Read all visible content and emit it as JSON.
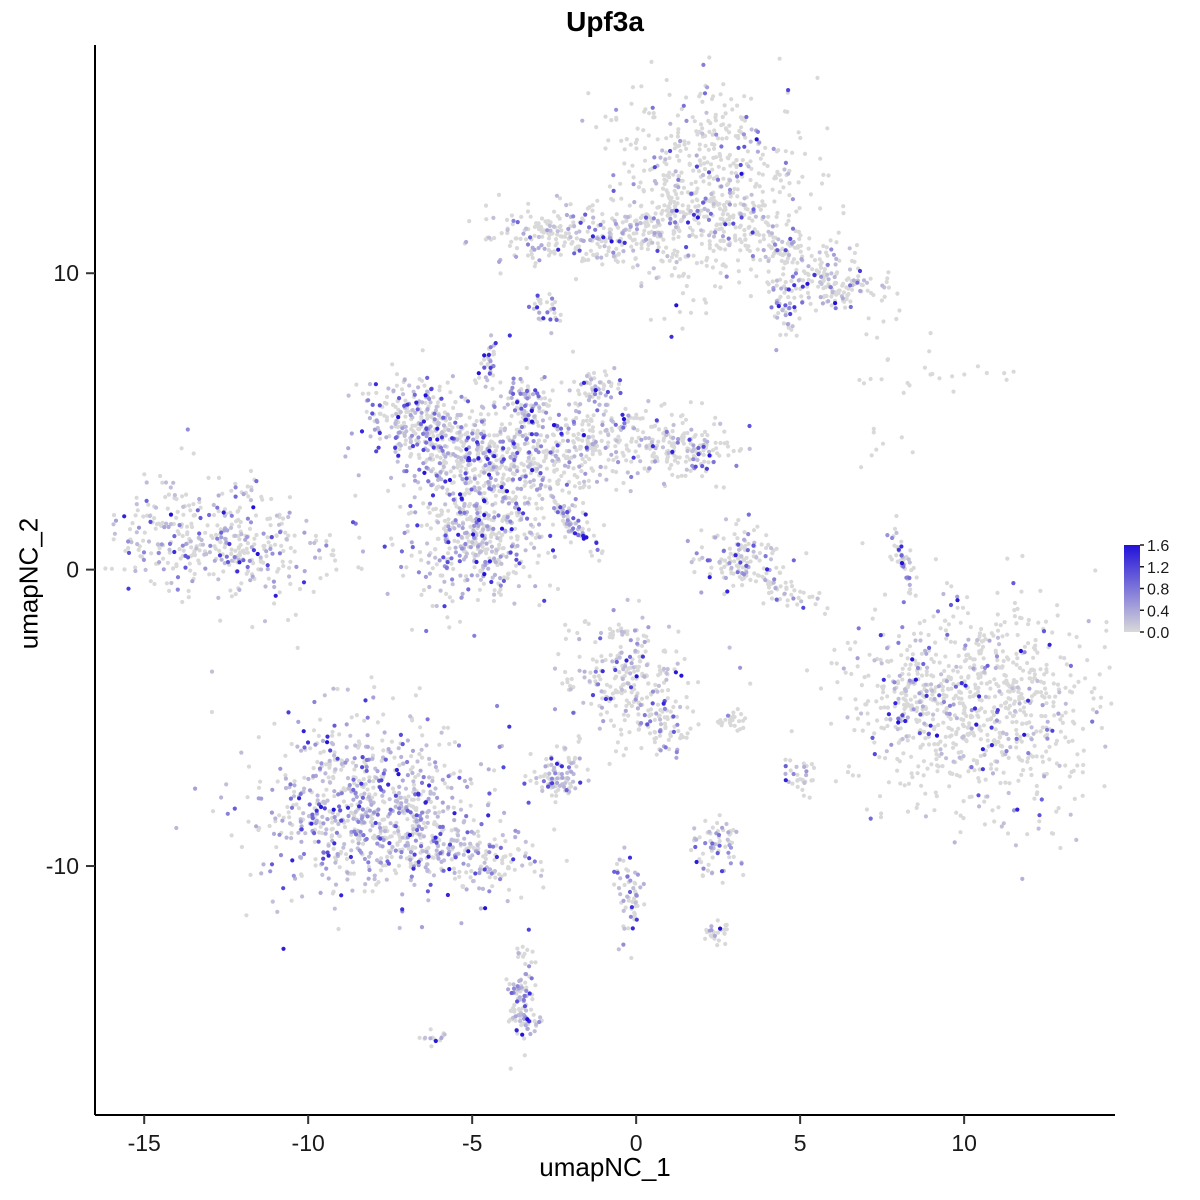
{
  "chart_data": {
    "type": "scatter",
    "title": "Upf3a",
    "xlabel": "umapNC_1",
    "ylabel": "umapNC_2",
    "xlim": [
      -16.5,
      14.6
    ],
    "ylim": [
      -18.4,
      17.7
    ],
    "x_ticks": [
      -15,
      -10,
      -5,
      0,
      5,
      10
    ],
    "y_ticks": [
      10,
      0,
      -10
    ],
    "grid": false,
    "background": "#FFFFFF",
    "legend": {
      "position": "right",
      "tick_labels": [
        "1.6",
        "1.2",
        "0.8",
        "0.4",
        "0.0"
      ],
      "min": 0.0,
      "max": 1.6,
      "low_color": "#D9D9D9",
      "high_color": "#2212D9"
    },
    "point_style": {
      "radius": 2.1
    },
    "seed": 7,
    "clusters": [
      {
        "cx": 2.0,
        "cy": 13.4,
        "sx": 1.4,
        "sy": 1.5,
        "rot": 0,
        "n": 500,
        "frac": 0.22
      },
      {
        "cx": 4.6,
        "cy": 10.8,
        "sx": 1.7,
        "sy": 0.55,
        "rot": -30,
        "n": 260,
        "frac": 0.28
      },
      {
        "cx": 5.8,
        "cy": 9.6,
        "sx": 0.6,
        "sy": 0.4,
        "rot": 0,
        "n": 70,
        "frac": 0.35
      },
      {
        "cx": 4.5,
        "cy": 8.8,
        "sx": 0.25,
        "sy": 0.5,
        "rot": 0,
        "n": 40,
        "frac": 0.5
      },
      {
        "cx": 1.5,
        "cy": 10.3,
        "sx": 0.9,
        "sy": 1.0,
        "rot": 0,
        "n": 60,
        "frac": 0.2
      },
      {
        "cx": -2.1,
        "cy": 11.3,
        "sx": 1.4,
        "sy": 0.5,
        "rot": -5,
        "n": 230,
        "frac": 0.3
      },
      {
        "cx": 0.3,
        "cy": 11.6,
        "sx": 1.2,
        "sy": 0.45,
        "rot": 10,
        "n": 90,
        "frac": 0.25
      },
      {
        "cx": -2.7,
        "cy": 8.6,
        "sx": 0.22,
        "sy": 0.38,
        "rot": 0,
        "n": 30,
        "frac": 0.55
      },
      {
        "cx": -4.5,
        "cy": 7.0,
        "sx": 0.2,
        "sy": 0.4,
        "rot": 0,
        "n": 28,
        "frac": 0.5
      },
      {
        "cx": -4.4,
        "cy": 3.2,
        "sx": 1.3,
        "sy": 1.5,
        "rot": 20,
        "n": 650,
        "frac": 0.45
      },
      {
        "cx": -7.0,
        "cy": 5.2,
        "sx": 0.75,
        "sy": 0.75,
        "rot": 0,
        "n": 170,
        "frac": 0.5
      },
      {
        "cx": -5.8,
        "cy": 4.3,
        "sx": 0.8,
        "sy": 0.5,
        "rot": -30,
        "n": 120,
        "frac": 0.4
      },
      {
        "cx": -1.2,
        "cy": 4.3,
        "sx": 1.5,
        "sy": 0.65,
        "rot": 8,
        "n": 280,
        "frac": 0.35
      },
      {
        "cx": 1.6,
        "cy": 4.0,
        "sx": 0.8,
        "sy": 0.55,
        "rot": 0,
        "n": 150,
        "frac": 0.3
      },
      {
        "cx": -1.9,
        "cy": 1.5,
        "sx": 0.7,
        "sy": 0.13,
        "rot": -50,
        "n": 70,
        "frac": 0.5
      },
      {
        "cx": -4.9,
        "cy": 0.6,
        "sx": 1.0,
        "sy": 0.9,
        "rot": 10,
        "n": 260,
        "frac": 0.45
      },
      {
        "cx": -3.4,
        "cy": 5.5,
        "sx": 0.3,
        "sy": 0.7,
        "rot": 0,
        "n": 80,
        "frac": 0.45
      },
      {
        "cx": -1.2,
        "cy": 6.1,
        "sx": 0.35,
        "sy": 0.4,
        "rot": 0,
        "n": 60,
        "frac": 0.4
      },
      {
        "cx": -12.7,
        "cy": 0.9,
        "sx": 1.7,
        "sy": 0.95,
        "rot": -8,
        "n": 430,
        "frac": 0.33
      },
      {
        "cx": 3.2,
        "cy": 0.4,
        "sx": 0.65,
        "sy": 0.55,
        "rot": 0,
        "n": 130,
        "frac": 0.3
      },
      {
        "cx": 4.4,
        "cy": -0.6,
        "sx": 0.6,
        "sy": 0.25,
        "rot": -25,
        "n": 50,
        "frac": 0.2
      },
      {
        "cx": 8.1,
        "cy": 0.4,
        "sx": 0.14,
        "sy": 0.55,
        "rot": 15,
        "n": 45,
        "frac": 0.4
      },
      {
        "cx": 10.4,
        "cy": -4.6,
        "sx": 2.0,
        "sy": 1.8,
        "rot": -15,
        "n": 850,
        "frac": 0.16
      },
      {
        "cx": 8.3,
        "cy": -4.0,
        "sx": 0.6,
        "sy": 0.8,
        "rot": 0,
        "n": 90,
        "frac": 0.3
      },
      {
        "cx": 9.0,
        "cy": 6.5,
        "sx": 1.4,
        "sy": 0.35,
        "rot": 0,
        "n": 22,
        "frac": 0.05
      },
      {
        "cx": 7.8,
        "cy": 4.2,
        "sx": 0.5,
        "sy": 0.4,
        "rot": 0,
        "n": 8,
        "frac": 0.1
      },
      {
        "cx": -0.3,
        "cy": -3.6,
        "sx": 0.85,
        "sy": 1.05,
        "rot": 15,
        "n": 270,
        "frac": 0.4
      },
      {
        "cx": 0.8,
        "cy": -5.3,
        "sx": 0.4,
        "sy": 0.5,
        "rot": 0,
        "n": 60,
        "frac": 0.3
      },
      {
        "cx": 2.9,
        "cy": -5.1,
        "sx": 0.3,
        "sy": 0.2,
        "rot": 0,
        "n": 25,
        "frac": 0.1
      },
      {
        "cx": -8.3,
        "cy": -8.0,
        "sx": 1.8,
        "sy": 1.5,
        "rot": -10,
        "n": 800,
        "frac": 0.55
      },
      {
        "cx": -5.6,
        "cy": -9.5,
        "sx": 1.3,
        "sy": 0.5,
        "rot": -18,
        "n": 220,
        "frac": 0.45
      },
      {
        "cx": -2.4,
        "cy": -6.9,
        "sx": 0.42,
        "sy": 0.38,
        "rot": 0,
        "n": 90,
        "frac": 0.5
      },
      {
        "cx": 5.0,
        "cy": -7.0,
        "sx": 0.25,
        "sy": 0.3,
        "rot": 0,
        "n": 30,
        "frac": 0.3
      },
      {
        "cx": 2.4,
        "cy": -9.3,
        "sx": 0.38,
        "sy": 0.5,
        "rot": 0,
        "n": 70,
        "frac": 0.4
      },
      {
        "cx": -0.2,
        "cy": -11.3,
        "sx": 0.2,
        "sy": 0.85,
        "rot": 0,
        "n": 60,
        "frac": 0.45
      },
      {
        "cx": 2.4,
        "cy": -12.4,
        "sx": 0.2,
        "sy": 0.28,
        "rot": 0,
        "n": 25,
        "frac": 0.4
      },
      {
        "cx": -3.5,
        "cy": -14.3,
        "sx": 0.22,
        "sy": 0.85,
        "rot": 0,
        "n": 70,
        "frac": 0.45
      },
      {
        "cx": -3.4,
        "cy": -15.2,
        "sx": 0.3,
        "sy": 0.3,
        "rot": 0,
        "n": 45,
        "frac": 0.5
      },
      {
        "cx": -6.1,
        "cy": -15.8,
        "sx": 0.22,
        "sy": 0.15,
        "rot": 0,
        "n": 15,
        "frac": 0.3
      }
    ]
  }
}
